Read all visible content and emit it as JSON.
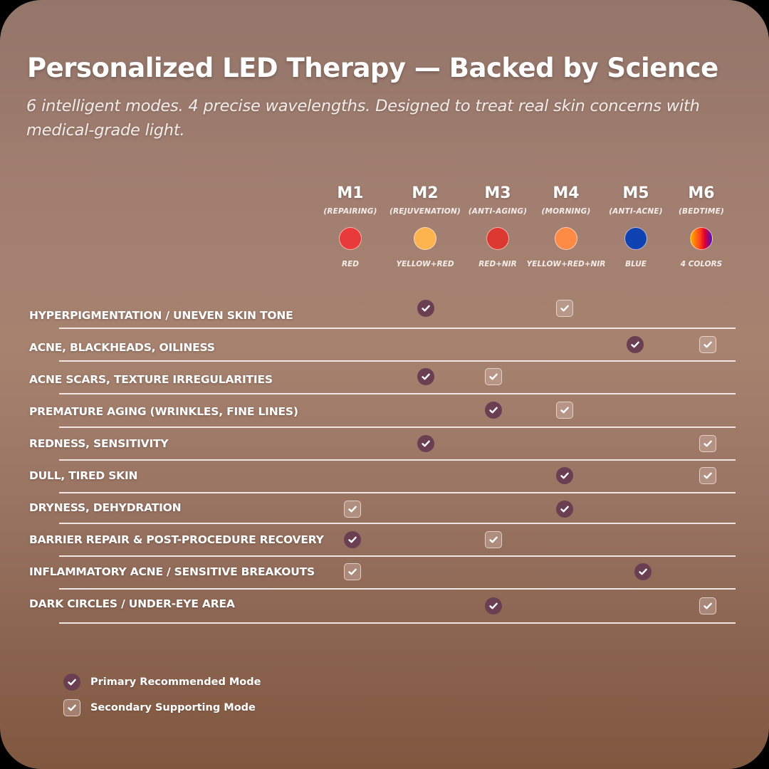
{
  "header": {
    "title": "Personalized LED Therapy — Backed by Science",
    "subtitle": "6 intelligent modes. 4 precise wavelengths. Designed to treat real skin concerns with medical-grade light."
  },
  "colors": {
    "primary_check": "#6a3f52",
    "background_top": "#937569",
    "background_bottom": "#80573f"
  },
  "modes": [
    {
      "id": "M1",
      "name": "(REPAIRING)",
      "color_label": "RED",
      "swatch": "#e83a3a"
    },
    {
      "id": "M2",
      "name": "(REJUVENATION)",
      "color_label": "YELLOW+RED",
      "swatch": "#fdb44f"
    },
    {
      "id": "M3",
      "name": "(ANTI-AGING)",
      "color_label": "RED+NIR",
      "swatch": "#dc3832"
    },
    {
      "id": "M4",
      "name": "(MORNING)",
      "color_label": "YELLOW+RED+NIR",
      "swatch": "#fd8a45"
    },
    {
      "id": "M5",
      "name": "(ANTI-ACNE)",
      "color_label": "BLUE",
      "swatch": "#0f43b3"
    },
    {
      "id": "M6",
      "name": "(BEDTIME)",
      "color_label": "4 COLORS",
      "swatch": "linear-gradient(90deg,#ffb000,#ff3c1e 45%,#e0002a 65%,#4a10c8)"
    }
  ],
  "concerns": [
    {
      "label": "HYPERPIGMENTATION / UNEVEN SKIN TONE",
      "primary": [
        "M2"
      ],
      "secondary": [
        "M4"
      ]
    },
    {
      "label": "ACNE, BLACKHEADS, OILINESS",
      "primary": [
        "M5"
      ],
      "secondary": [
        "M6"
      ]
    },
    {
      "label": "ACNE SCARS, TEXTURE IRREGULARITIES",
      "primary": [
        "M2"
      ],
      "secondary": [
        "M3"
      ]
    },
    {
      "label": "PREMATURE AGING (WRINKLES, FINE LINES)",
      "primary": [
        "M3"
      ],
      "secondary": [
        "M4"
      ]
    },
    {
      "label": "REDNESS, SENSITIVITY",
      "primary": [
        "M2"
      ],
      "secondary": [
        "M6"
      ]
    },
    {
      "label": "DULL, TIRED SKIN",
      "primary": [
        "M4"
      ],
      "secondary": [
        "M6"
      ]
    },
    {
      "label": "DRYNESS, DEHYDRATION",
      "primary": [
        "M4"
      ],
      "secondary": [
        "M1"
      ]
    },
    {
      "label": "BARRIER REPAIR & POST-PROCEDURE RECOVERY",
      "primary": [
        "M1"
      ],
      "secondary": [
        "M3"
      ]
    },
    {
      "label": "INFLAMMATORY ACNE / SENSITIVE BREAKOUTS",
      "primary": [
        "M5"
      ],
      "secondary": [
        "M1"
      ]
    },
    {
      "label": "DARK CIRCLES / UNDER-EYE AREA",
      "primary": [
        "M3"
      ],
      "secondary": [
        "M6"
      ]
    }
  ],
  "legend": {
    "primary_label": "Primary Recommended Mode",
    "secondary_label": "Secondary Supporting Mode"
  },
  "icons": {
    "primary": "check-circle-icon",
    "secondary": "check-square-icon"
  }
}
